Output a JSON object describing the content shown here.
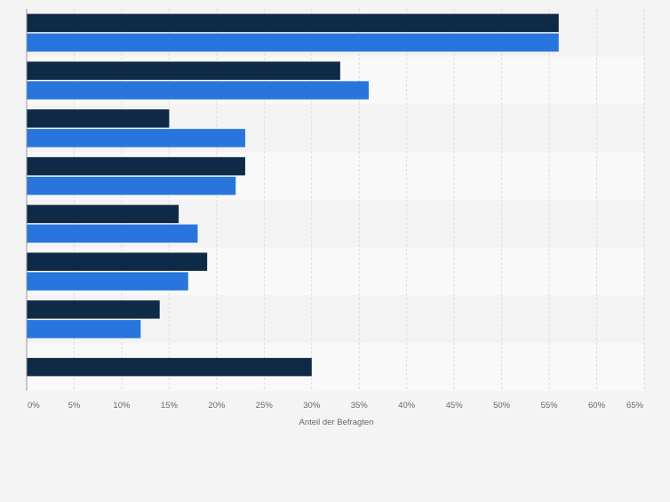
{
  "chart_data": {
    "type": "bar",
    "orientation": "horizontal",
    "categories": [
      "",
      "",
      "",
      "",
      "",
      "",
      "",
      ""
    ],
    "series": [
      {
        "values": [
          56,
          33,
          15,
          23,
          16,
          19,
          14,
          30
        ],
        "color": "#0f2a47"
      },
      {
        "values": [
          56,
          36,
          23,
          22,
          18,
          17,
          12,
          null
        ],
        "color": "#2876dd"
      }
    ],
    "xlabel": "Anteil der Befragten",
    "xlim": [
      0,
      65
    ],
    "xticks": [
      0,
      5,
      10,
      15,
      20,
      25,
      30,
      35,
      40,
      45,
      50,
      55,
      60,
      65
    ],
    "tick_format": "{v}%",
    "grid": true,
    "legend": "none"
  }
}
